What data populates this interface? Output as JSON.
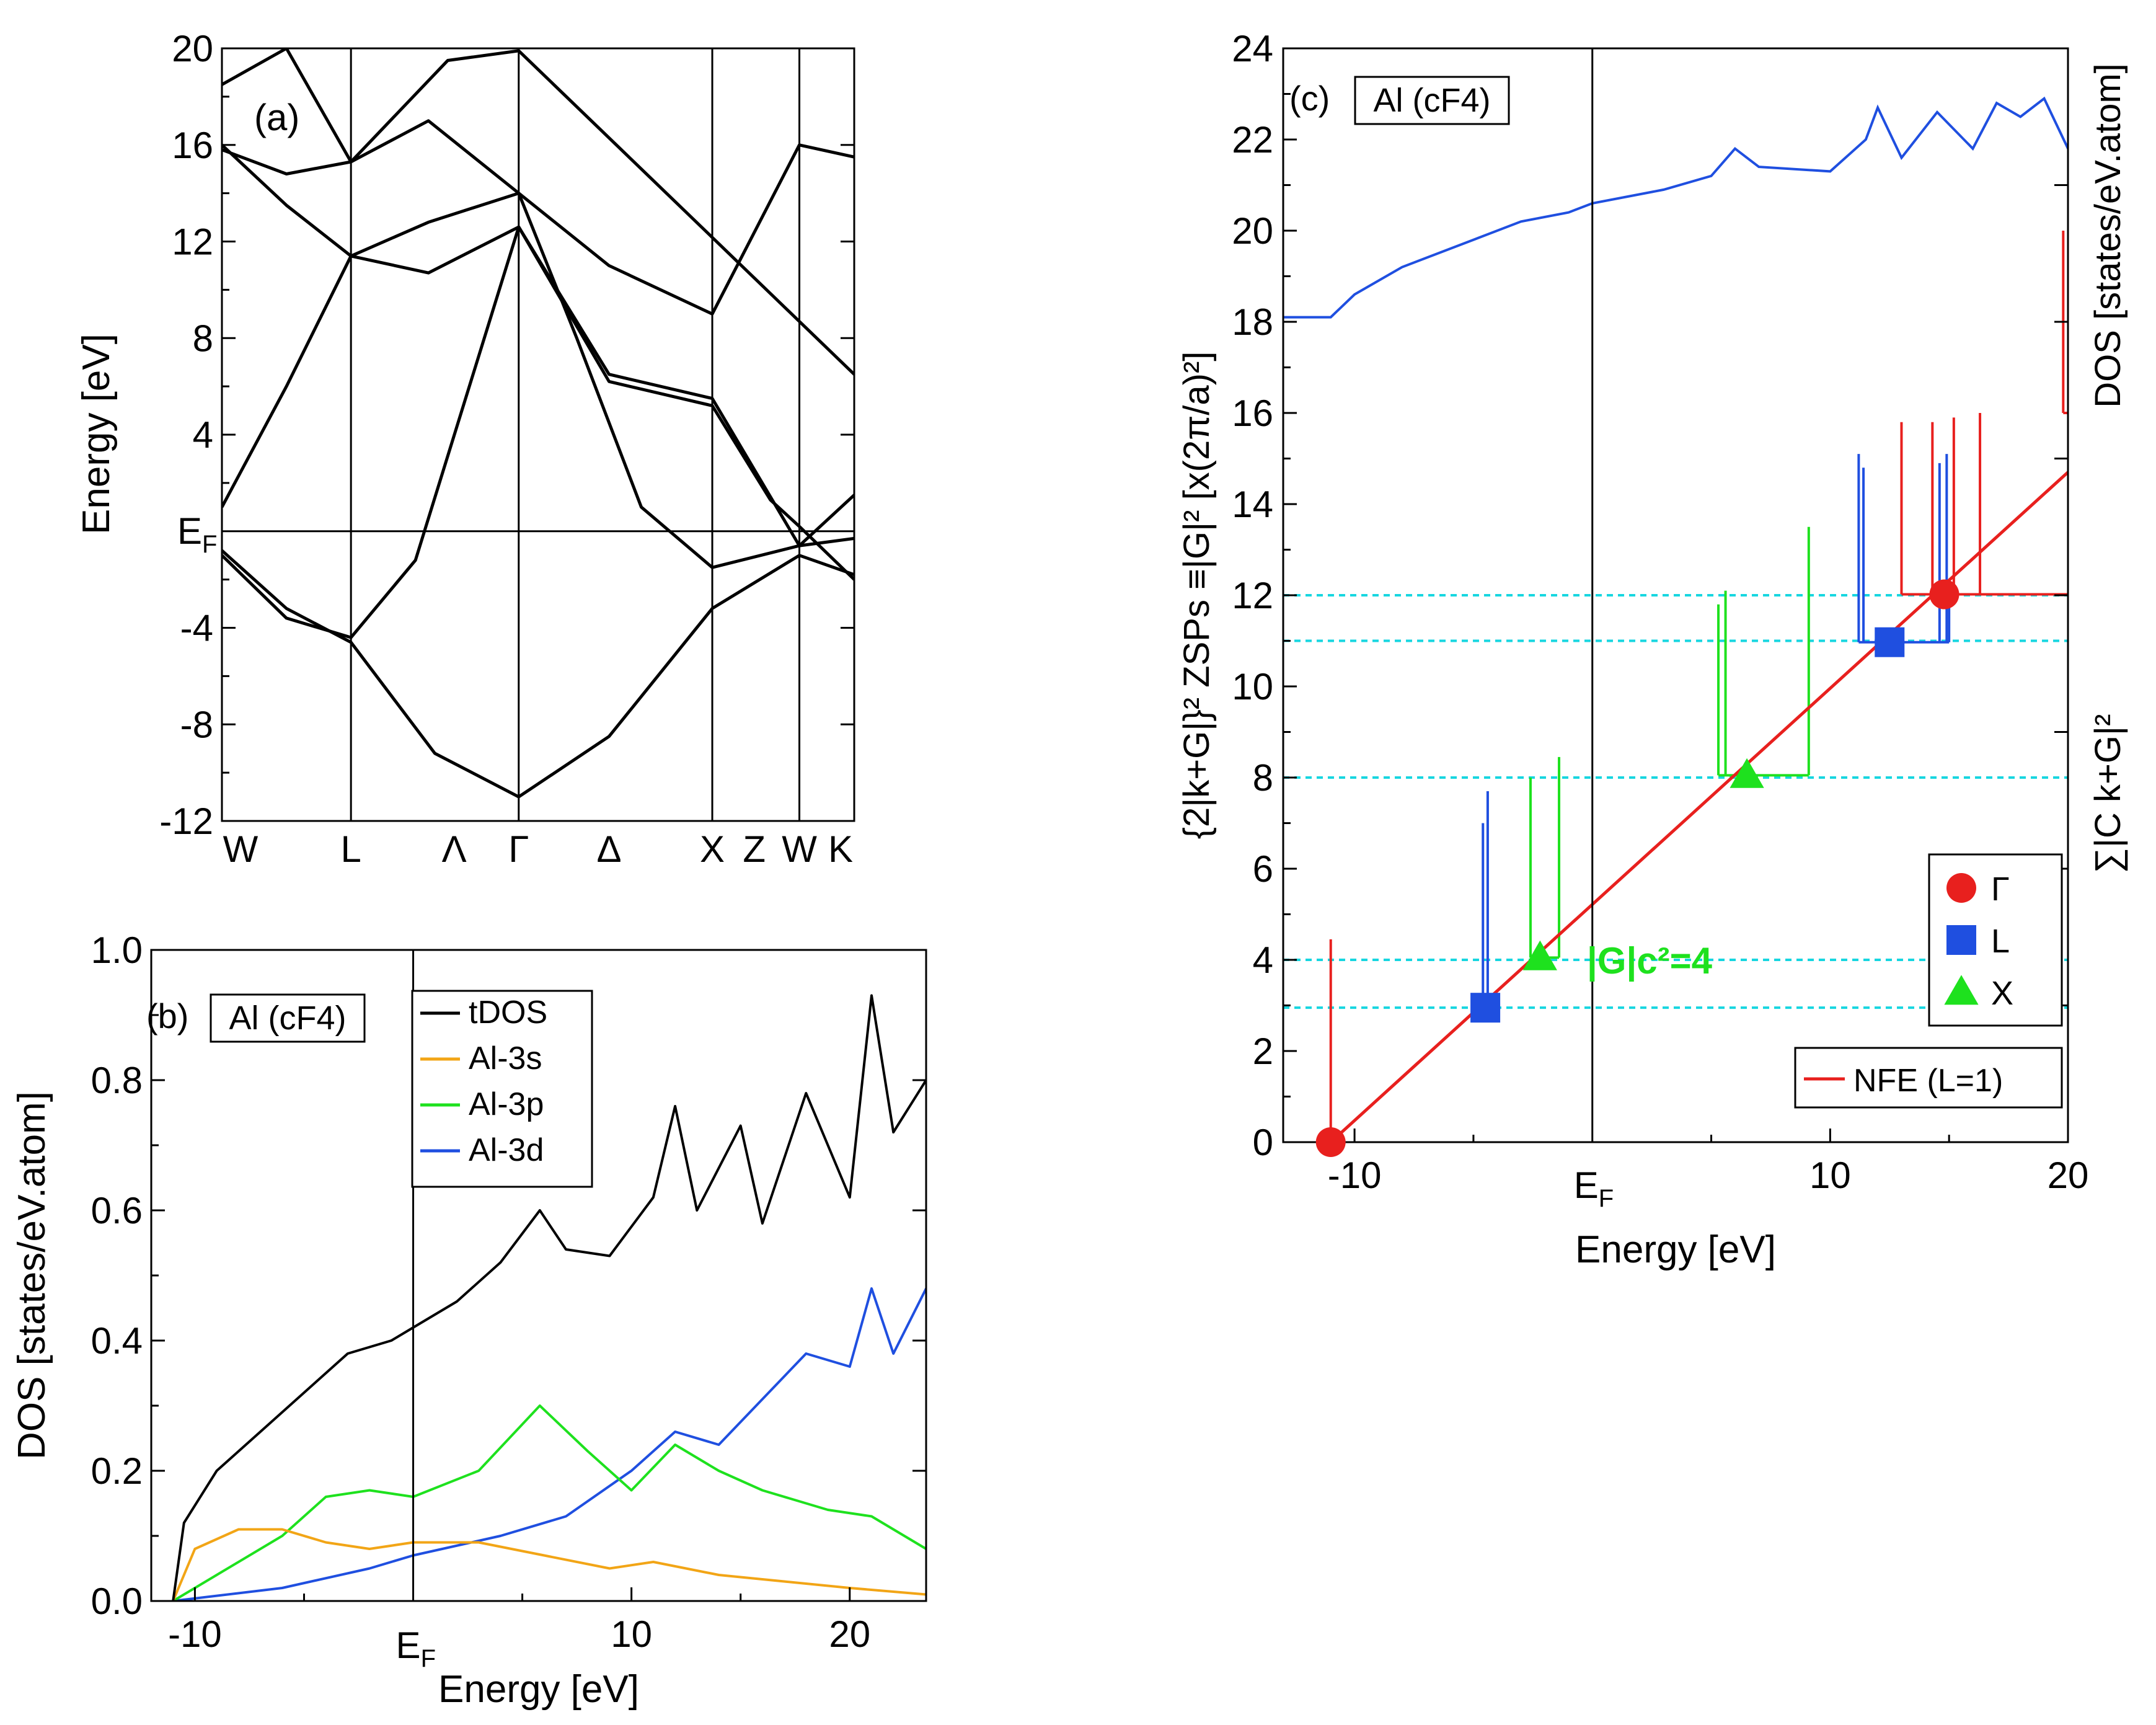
{
  "colors": {
    "black": "#000000",
    "orange": "#f2a516",
    "green": "#1ee11e",
    "blue": "#1f4fe0",
    "red": "#e8201e",
    "cyan": "#17d6e0"
  },
  "panel_a": {
    "label": "(a)",
    "ylabel": "Energy [eV]",
    "ef_label": "E",
    "ef_sub": "F",
    "yticks": [
      {
        "v": 20,
        "t": "20"
      },
      {
        "v": 16,
        "t": "16"
      },
      {
        "v": 12,
        "t": "12"
      },
      {
        "v": 8,
        "t": "8"
      },
      {
        "v": 4,
        "t": "4"
      },
      {
        "v": -4,
        "t": "-4"
      },
      {
        "v": -8,
        "t": "-8"
      },
      {
        "v": -12,
        "t": "-12"
      }
    ],
    "kpoints": [
      {
        "k": 0,
        "t": "W"
      },
      {
        "k": 2,
        "t": "L"
      },
      {
        "k": 3.6,
        "t": "Λ"
      },
      {
        "k": 4.6,
        "t": "Γ"
      },
      {
        "k": 6.0,
        "t": "Δ"
      },
      {
        "k": 7.6,
        "t": "X"
      },
      {
        "k": 8.25,
        "t": "Z"
      },
      {
        "k": 8.95,
        "t": "W"
      },
      {
        "k": 9.8,
        "t": "K"
      }
    ]
  },
  "panel_b": {
    "label": "(b)",
    "box_label": "Al (cF4)",
    "xlabel": "Energy [eV]",
    "ylabel": "DOS [states/eV.atom]",
    "ef_label": "E",
    "ef_sub": "F",
    "xticks": [
      {
        "v": -10,
        "t": "-10"
      },
      {
        "v": 10,
        "t": "10"
      },
      {
        "v": 20,
        "t": "20"
      }
    ],
    "yticks": [
      {
        "v": 0,
        "t": "0.0"
      },
      {
        "v": 0.2,
        "t": "0.2"
      },
      {
        "v": 0.4,
        "t": "0.4"
      },
      {
        "v": 0.6,
        "t": "0.6"
      },
      {
        "v": 0.8,
        "t": "0.8"
      },
      {
        "v": 1.0,
        "t": "1.0"
      }
    ],
    "legend": [
      {
        "name": "tDOS",
        "color": "#000000"
      },
      {
        "name": "Al-3s",
        "color": "#f2a516"
      },
      {
        "name": "Al-3p",
        "color": "#1ee11e"
      },
      {
        "name": "Al-3d",
        "color": "#1f4fe0"
      }
    ]
  },
  "panel_c": {
    "label": "(c)",
    "box_label": "Al (cF4)",
    "xlabel": "Energy [eV]",
    "ef_label": "E",
    "ef_sub": "F",
    "xticks": [
      {
        "v": -10,
        "t": "-10"
      },
      {
        "v": 10,
        "t": "10"
      },
      {
        "v": 20,
        "t": "20"
      }
    ],
    "yticks": [
      {
        "v": 0,
        "t": "0"
      },
      {
        "v": 2,
        "t": "2"
      },
      {
        "v": 4,
        "t": "4"
      },
      {
        "v": 6,
        "t": "6"
      },
      {
        "v": 8,
        "t": "8"
      },
      {
        "v": 10,
        "t": "10"
      },
      {
        "v": 12,
        "t": "12"
      },
      {
        "v": 14,
        "t": "14"
      },
      {
        "v": 16,
        "t": "16"
      },
      {
        "v": 18,
        "t": "18"
      },
      {
        "v": 20,
        "t": "20"
      },
      {
        "v": 22,
        "t": "22"
      },
      {
        "v": 24,
        "t": "24"
      }
    ],
    "ylabel_left": "{2|k+G|}² ZSPs ≡|G|² [x(2π/a)²]",
    "ylabel_right_top": "DOS [states/eV.atom]",
    "ylabel_right_bottom": "∑|C k+G|²",
    "annotation": "|G|c²=4",
    "legend": [
      {
        "name": "Γ",
        "marker": "circle",
        "color": "#e8201e"
      },
      {
        "name": "L",
        "marker": "square",
        "color": "#1f4fe0"
      },
      {
        "name": "X",
        "marker": "triangle",
        "color": "#1ee11e"
      }
    ],
    "legend2": {
      "name": "NFE (L=1)",
      "color": "#e8201e"
    }
  },
  "chart_data": [
    {
      "type": "line",
      "title": "(a)",
      "ylabel": "Energy [eV]",
      "ylim": [
        -12,
        20
      ],
      "x_ticks": [
        "W",
        "L",
        "Λ",
        "Γ",
        "Δ",
        "X",
        "Z",
        "W",
        "K"
      ],
      "series": [
        {
          "values": [
            [
              0,
              -0.8
            ],
            [
              1,
              -3.2
            ],
            [
              2,
              -4.6
            ],
            [
              3.3,
              -9.2
            ],
            [
              4.6,
              -11
            ],
            [
              6,
              -8.5
            ],
            [
              7.6,
              -3.2
            ],
            [
              8.95,
              -1
            ],
            [
              9.8,
              -1.8
            ]
          ]
        },
        {
          "values": [
            [
              0,
              -1
            ],
            [
              1,
              -3.6
            ],
            [
              2,
              -4.4
            ],
            [
              3,
              -1.2
            ],
            [
              4.6,
              12.6
            ],
            [
              6,
              6.2
            ],
            [
              7.6,
              5.2
            ],
            [
              8.5,
              1.3
            ],
            [
              8.95,
              0.2
            ],
            [
              9.8,
              -2
            ]
          ]
        },
        {
          "values": [
            [
              0,
              1
            ],
            [
              1,
              6
            ],
            [
              2,
              11.4
            ],
            [
              3.2,
              10.7
            ],
            [
              4.6,
              12.6
            ],
            [
              6,
              6.5
            ],
            [
              7.6,
              5.5
            ],
            [
              8.95,
              -0.6
            ],
            [
              9.8,
              -0.3
            ]
          ]
        },
        {
          "values": [
            [
              0,
              16
            ],
            [
              1,
              13.5
            ],
            [
              2,
              11.4
            ],
            [
              3.2,
              12.8
            ],
            [
              4.6,
              14
            ],
            [
              6,
              11
            ],
            [
              7.6,
              9
            ],
            [
              8.95,
              16
            ],
            [
              9.8,
              15.5
            ]
          ]
        },
        {
          "values": [
            [
              0,
              15.8
            ],
            [
              1,
              14.8
            ],
            [
              2,
              15.3
            ],
            [
              3.2,
              17
            ],
            [
              4.6,
              14
            ],
            [
              5.5,
              8
            ],
            [
              6.5,
              1
            ],
            [
              7.6,
              -1.5
            ],
            [
              8.95,
              -0.6
            ],
            [
              9.8,
              1.5
            ]
          ]
        },
        {
          "values": [
            [
              0,
              18.5
            ],
            [
              1,
              20
            ],
            [
              2,
              15.3
            ],
            [
              3.5,
              19.5
            ],
            [
              4.6,
              19.9
            ],
            [
              9.8,
              6.5
            ]
          ]
        }
      ]
    },
    {
      "type": "line",
      "title": "Al (cF4)",
      "xlabel": "Energy [eV]",
      "ylabel": "DOS [states/eV.atom]",
      "xlim": [
        -12,
        23.5
      ],
      "ylim": [
        0,
        1.0
      ],
      "series": [
        {
          "name": "tDOS",
          "values": [
            [
              -11,
              0
            ],
            [
              -10.5,
              0.12
            ],
            [
              -9,
              0.2
            ],
            [
              -7,
              0.26
            ],
            [
              -5,
              0.32
            ],
            [
              -3,
              0.38
            ],
            [
              -1,
              0.4
            ],
            [
              0,
              0.42
            ],
            [
              2,
              0.46
            ],
            [
              4,
              0.52
            ],
            [
              5.8,
              0.6
            ],
            [
              7,
              0.54
            ],
            [
              9,
              0.53
            ],
            [
              11,
              0.62
            ],
            [
              12,
              0.76
            ],
            [
              13,
              0.6
            ],
            [
              15,
              0.73
            ],
            [
              16,
              0.58
            ],
            [
              18,
              0.78
            ],
            [
              20,
              0.62
            ],
            [
              21,
              0.93
            ],
            [
              22,
              0.72
            ],
            [
              23.5,
              0.8
            ]
          ]
        },
        {
          "name": "Al-3s",
          "values": [
            [
              -11,
              0
            ],
            [
              -10,
              0.08
            ],
            [
              -8,
              0.11
            ],
            [
              -6,
              0.11
            ],
            [
              -4,
              0.09
            ],
            [
              -2,
              0.08
            ],
            [
              0,
              0.09
            ],
            [
              3,
              0.09
            ],
            [
              6,
              0.07
            ],
            [
              9,
              0.05
            ],
            [
              11,
              0.06
            ],
            [
              14,
              0.04
            ],
            [
              17,
              0.03
            ],
            [
              20,
              0.02
            ],
            [
              23.5,
              0.01
            ]
          ]
        },
        {
          "name": "Al-3p",
          "values": [
            [
              -11,
              0
            ],
            [
              -9,
              0.04
            ],
            [
              -6,
              0.1
            ],
            [
              -4,
              0.16
            ],
            [
              -2,
              0.17
            ],
            [
              0,
              0.16
            ],
            [
              3,
              0.2
            ],
            [
              5.8,
              0.3
            ],
            [
              8,
              0.23
            ],
            [
              10,
              0.17
            ],
            [
              12,
              0.24
            ],
            [
              14,
              0.2
            ],
            [
              16,
              0.17
            ],
            [
              19,
              0.14
            ],
            [
              21,
              0.13
            ],
            [
              23.5,
              0.08
            ]
          ]
        },
        {
          "name": "Al-3d",
          "values": [
            [
              -11,
              0
            ],
            [
              -6,
              0.02
            ],
            [
              -2,
              0.05
            ],
            [
              0,
              0.07
            ],
            [
              4,
              0.1
            ],
            [
              7,
              0.13
            ],
            [
              10,
              0.2
            ],
            [
              12,
              0.26
            ],
            [
              14,
              0.24
            ],
            [
              16,
              0.31
            ],
            [
              18,
              0.38
            ],
            [
              20,
              0.36
            ],
            [
              21,
              0.48
            ],
            [
              22,
              0.38
            ],
            [
              23.5,
              0.48
            ]
          ]
        }
      ]
    },
    {
      "type": "line",
      "title": "Al (cF4)",
      "xlabel": "Energy [eV]",
      "xlim": [
        -13,
        20
      ],
      "ylim": [
        0,
        24
      ],
      "nfe_line": [
        [
          -11,
          0
        ],
        [
          20,
          14.7
        ]
      ],
      "markers": [
        {
          "name": "Γ",
          "x": -11,
          "y": 0
        },
        {
          "name": "L",
          "x": -4.5,
          "y": 2.95
        },
        {
          "name": "X",
          "x": -2.2,
          "y": 4.05
        },
        {
          "name": "X",
          "x": 6.5,
          "y": 8.05
        },
        {
          "name": "L",
          "x": 12.5,
          "y": 10.97
        },
        {
          "name": "Γ",
          "x": 14.8,
          "y": 12.02
        }
      ],
      "dashed_levels": [
        2.95,
        4,
        8,
        11,
        12
      ],
      "dos_series": {
        "values": [
          [
            -13,
            18.1
          ],
          [
            -11,
            18.1
          ],
          [
            -10,
            18.6
          ],
          [
            -8,
            19.2
          ],
          [
            -5,
            19.8
          ],
          [
            -3,
            20.2
          ],
          [
            -1,
            20.4
          ],
          [
            0,
            20.6
          ],
          [
            3,
            20.9
          ],
          [
            5,
            21.2
          ],
          [
            6,
            21.8
          ],
          [
            7,
            21.4
          ],
          [
            10,
            21.3
          ],
          [
            11.5,
            22
          ],
          [
            12,
            22.7
          ],
          [
            13,
            21.6
          ],
          [
            14.5,
            22.6
          ],
          [
            16,
            21.8
          ],
          [
            17,
            22.8
          ],
          [
            18,
            22.5
          ],
          [
            19,
            22.9
          ],
          [
            20,
            21.8
          ]
        ]
      }
    }
  ]
}
